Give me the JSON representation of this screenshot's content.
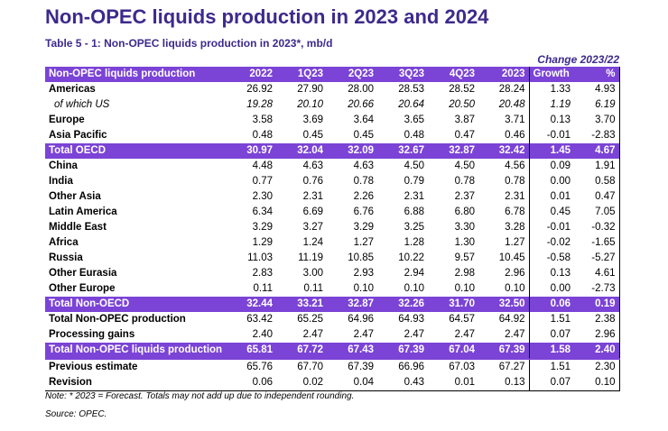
{
  "title": "Non-OPEC liquids production in 2023 and 2024",
  "table_caption": "Table 5 - 1: Non-OPEC liquids production in 2023*, mb/d",
  "change_header": "Change 2023/22",
  "columns": [
    "Non-OPEC liquids production",
    "2022",
    "1Q23",
    "2Q23",
    "3Q23",
    "4Q23",
    "2023",
    "Growth",
    "%"
  ],
  "rows": [
    {
      "label": "Americas",
      "values": [
        "26.92",
        "27.90",
        "28.00",
        "28.53",
        "28.52",
        "28.24",
        "1.33",
        "4.93"
      ],
      "style": "bold"
    },
    {
      "label": "of which US",
      "values": [
        "19.28",
        "20.10",
        "20.66",
        "20.64",
        "20.50",
        "20.48",
        "1.19",
        "6.19"
      ],
      "style": "sub"
    },
    {
      "label": "Europe",
      "values": [
        "3.58",
        "3.69",
        "3.64",
        "3.65",
        "3.87",
        "3.71",
        "0.13",
        "3.70"
      ],
      "style": "bold"
    },
    {
      "label": "Asia Pacific",
      "values": [
        "0.48",
        "0.45",
        "0.45",
        "0.48",
        "0.47",
        "0.46",
        "-0.01",
        "-2.83"
      ],
      "style": "bold"
    },
    {
      "label": "Total OECD",
      "values": [
        "30.97",
        "32.04",
        "32.09",
        "32.67",
        "32.87",
        "32.42",
        "1.45",
        "4.67"
      ],
      "style": "hl"
    },
    {
      "label": "China",
      "values": [
        "4.48",
        "4.63",
        "4.63",
        "4.50",
        "4.50",
        "4.56",
        "0.09",
        "1.91"
      ],
      "style": "bold"
    },
    {
      "label": "India",
      "values": [
        "0.77",
        "0.76",
        "0.78",
        "0.79",
        "0.78",
        "0.78",
        "0.00",
        "0.58"
      ],
      "style": "bold"
    },
    {
      "label": "Other Asia",
      "values": [
        "2.30",
        "2.31",
        "2.26",
        "2.31",
        "2.37",
        "2.31",
        "0.01",
        "0.47"
      ],
      "style": "bold"
    },
    {
      "label": "Latin America",
      "values": [
        "6.34",
        "6.69",
        "6.76",
        "6.88",
        "6.80",
        "6.78",
        "0.45",
        "7.05"
      ],
      "style": "bold"
    },
    {
      "label": "Middle East",
      "values": [
        "3.29",
        "3.27",
        "3.29",
        "3.25",
        "3.30",
        "3.28",
        "-0.01",
        "-0.32"
      ],
      "style": "bold"
    },
    {
      "label": "Africa",
      "values": [
        "1.29",
        "1.24",
        "1.27",
        "1.28",
        "1.30",
        "1.27",
        "-0.02",
        "-1.65"
      ],
      "style": "bold"
    },
    {
      "label": "Russia",
      "values": [
        "11.03",
        "11.19",
        "10.85",
        "10.22",
        "9.57",
        "10.45",
        "-0.58",
        "-5.27"
      ],
      "style": "bold"
    },
    {
      "label": "Other Eurasia",
      "values": [
        "2.83",
        "3.00",
        "2.93",
        "2.94",
        "2.98",
        "2.96",
        "0.13",
        "4.61"
      ],
      "style": "bold"
    },
    {
      "label": "Other Europe",
      "values": [
        "0.11",
        "0.11",
        "0.10",
        "0.10",
        "0.10",
        "0.10",
        "0.00",
        "-2.73"
      ],
      "style": "bold"
    },
    {
      "label": "Total Non-OECD",
      "values": [
        "32.44",
        "33.21",
        "32.87",
        "32.26",
        "31.70",
        "32.50",
        "0.06",
        "0.19"
      ],
      "style": "hl"
    },
    {
      "label": "Total Non-OPEC production",
      "values": [
        "63.42",
        "65.25",
        "64.96",
        "64.93",
        "64.57",
        "64.92",
        "1.51",
        "2.38"
      ],
      "style": "bold"
    },
    {
      "label": "Processing gains",
      "values": [
        "2.40",
        "2.47",
        "2.47",
        "2.47",
        "2.47",
        "2.47",
        "0.07",
        "2.96"
      ],
      "style": "bold"
    },
    {
      "label": "Total Non-OPEC liquids production",
      "values": [
        "65.81",
        "67.72",
        "67.43",
        "67.39",
        "67.04",
        "67.39",
        "1.58",
        "2.40"
      ],
      "style": "hl"
    },
    {
      "label": "Previous estimate",
      "values": [
        "65.76",
        "67.70",
        "67.39",
        "66.96",
        "67.03",
        "67.27",
        "1.51",
        "2.30"
      ],
      "style": "bold-sep"
    },
    {
      "label": "Revision",
      "values": [
        "0.06",
        "0.02",
        "0.04",
        "0.43",
        "0.01",
        "0.13",
        "0.07",
        "0.10"
      ],
      "style": "bold-last"
    }
  ],
  "note": "Note: * 2023 = Forecast. Totals may not add up due to independent rounding.",
  "source": "Source: OPEC.",
  "colors": {
    "title": "#3d2a8c",
    "highlight": "#7b43d6"
  }
}
